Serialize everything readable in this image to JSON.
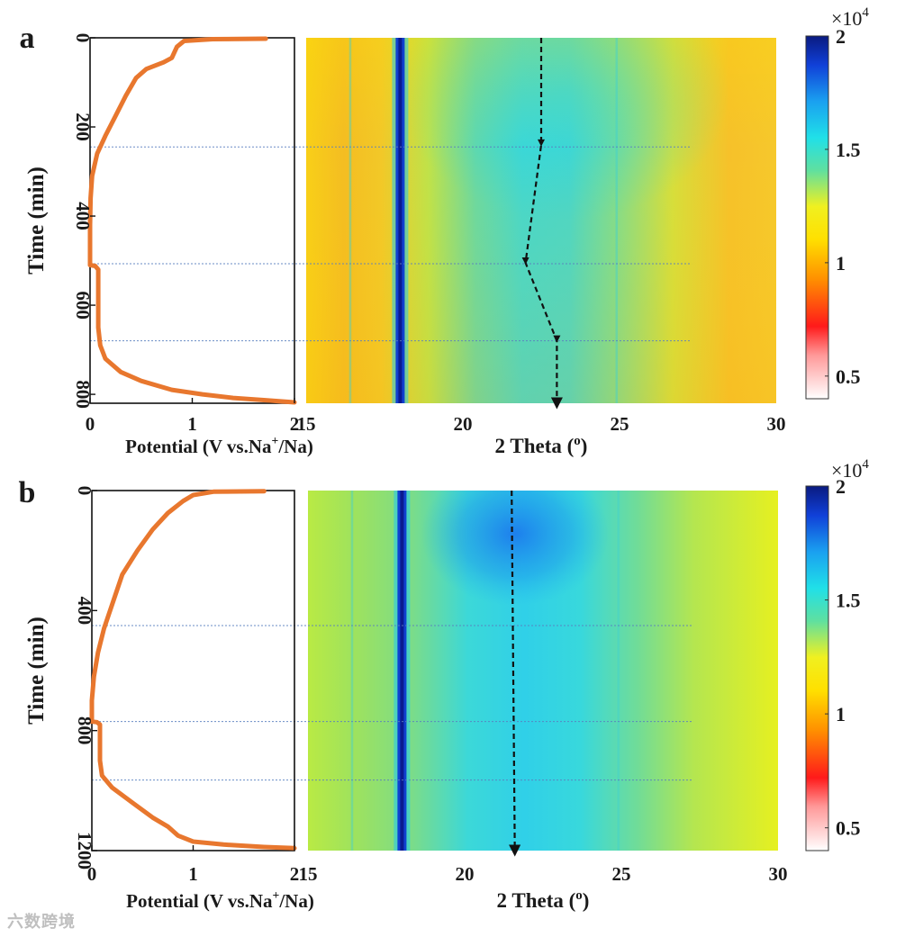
{
  "watermark": "六数跨境",
  "chart_data": [
    {
      "panel": "a",
      "type": "line",
      "ylabel": "Time (min)",
      "xlabel_main": "Potential (V vs.Na",
      "xlabel_sup": "+",
      "xlabel_tail": "/Na)",
      "xlim": [
        0,
        2
      ],
      "xticks": [
        0,
        1,
        2
      ],
      "ylim": [
        0,
        820
      ],
      "yticks": [
        0,
        200,
        400,
        600,
        800
      ],
      "series": [
        {
          "name": "Potential",
          "color": "#e8772e",
          "x": [
            1.72,
            1.2,
            0.92,
            0.85,
            0.8,
            0.72,
            0.55,
            0.45,
            0.35,
            0.25,
            0.15,
            0.07,
            0.02,
            0.005,
            0.0,
            0.0,
            0.0,
            0.05,
            0.08,
            0.08,
            0.1,
            0.15,
            0.3,
            0.5,
            0.8,
            1.1,
            1.4,
            1.7,
            2.0
          ],
          "y": [
            2,
            3,
            7,
            20,
            45,
            55,
            70,
            90,
            130,
            175,
            220,
            260,
            310,
            360,
            420,
            480,
            510,
            512,
            520,
            650,
            690,
            720,
            750,
            770,
            790,
            800,
            808,
            813,
            818
          ]
        }
      ]
    },
    {
      "panel": "a",
      "type": "heatmap",
      "xlabel_main": "2 Theta (",
      "xlabel_sup": "o",
      "xlabel_tail": ")",
      "xlim": [
        15,
        30
      ],
      "xticks": [
        15,
        20,
        25,
        30
      ],
      "ylim": [
        0,
        820
      ],
      "peak_2theta": 18.0,
      "peak_shift_2theta": [
        22.5,
        22.5,
        22.0,
        23.0,
        23.0
      ],
      "peak_shift_time": [
        0,
        240,
        505,
        680,
        820
      ],
      "guide_lines_time": [
        245,
        507,
        680
      ],
      "colorbar": {
        "multiplier_prefix": "×10",
        "multiplier_exp": "4",
        "ticks": [
          0.5,
          1,
          1.5,
          2
        ],
        "range": [
          0.4,
          2
        ]
      }
    },
    {
      "panel": "b",
      "type": "line",
      "ylabel": "Time (min)",
      "xlabel_main": "Potential (V vs.Na",
      "xlabel_sup": "+",
      "xlabel_tail": "/Na)",
      "xlim": [
        0,
        2
      ],
      "xticks": [
        0,
        1,
        2
      ],
      "ylim": [
        0,
        1200
      ],
      "yticks": [
        0,
        400,
        800,
        1200
      ],
      "series": [
        {
          "name": "Potential",
          "color": "#e8772e",
          "x": [
            1.7,
            1.2,
            1.0,
            0.9,
            0.75,
            0.6,
            0.45,
            0.3,
            0.2,
            0.12,
            0.06,
            0.02,
            0.0,
            0.0,
            0.0,
            0.05,
            0.08,
            0.08,
            0.1,
            0.2,
            0.4,
            0.6,
            0.75,
            0.85,
            1.0,
            1.3,
            1.7,
            2.0
          ],
          "y": [
            2,
            4,
            15,
            35,
            75,
            130,
            200,
            280,
            380,
            460,
            540,
            620,
            700,
            760,
            770,
            772,
            780,
            900,
            950,
            990,
            1040,
            1090,
            1120,
            1150,
            1170,
            1180,
            1188,
            1192
          ]
        }
      ]
    },
    {
      "panel": "b",
      "type": "heatmap",
      "xlabel_main": "2 Theta (",
      "xlabel_sup": "o",
      "xlabel_tail": ")",
      "xlim": [
        15,
        30
      ],
      "xticks": [
        15,
        20,
        25,
        30
      ],
      "ylim": [
        0,
        1200
      ],
      "peak_2theta": 18.0,
      "peak_shift_2theta": [
        21.5,
        21.6
      ],
      "peak_shift_time": [
        0,
        1200
      ],
      "guide_lines_time": [
        450,
        770,
        965
      ],
      "colorbar": {
        "multiplier_prefix": "×10",
        "multiplier_exp": "4",
        "ticks": [
          0.5,
          1,
          1.5,
          2
        ],
        "range": [
          0.4,
          2
        ]
      }
    }
  ]
}
